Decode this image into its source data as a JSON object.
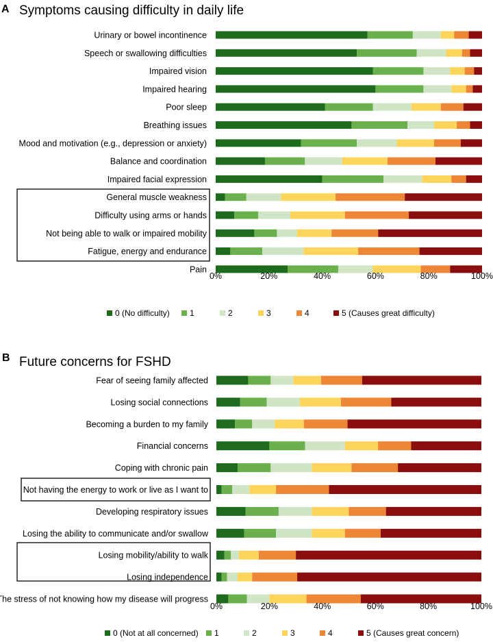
{
  "chart_data": [
    {
      "type": "bar",
      "orientation": "horizontal",
      "stacked": true,
      "panel_letter": "A",
      "title": "Symptoms causing difficulty in daily life",
      "xlim": [
        0,
        100
      ],
      "x_tick_labels": [
        "0%",
        "20%",
        "40%",
        "60%",
        "80%",
        "100%"
      ],
      "legend_position": "bottom",
      "highlighted_categories": [
        9,
        10,
        11,
        12
      ],
      "categories": [
        "Urinary or bowel incontinence",
        "Speech or swallowing difficulties",
        "Impaired vision",
        "Impaired hearing",
        "Poor sleep",
        "Breathing issues",
        "Mood and motivation (e.g., depression or anxiety)",
        "Balance and coordination",
        "Impaired facial expression",
        "General muscle weakness",
        "Difficulty using arms or hands",
        "Not being able to walk or impaired mobility",
        "Fatigue, energy and endurance",
        "Pain"
      ],
      "series": [
        {
          "name": "0 (No difficulty)",
          "color": "#1e6b1e",
          "values": [
            57.0,
            53.0,
            59.0,
            60.0,
            41.0,
            51.0,
            32.0,
            18.5,
            40.0,
            3.5,
            7.0,
            14.5,
            5.5,
            27.0
          ]
        },
        {
          "name": "1",
          "color": "#6ab04c",
          "values": [
            17.0,
            22.5,
            19.0,
            18.0,
            18.0,
            21.0,
            21.0,
            15.0,
            23.0,
            8.0,
            9.0,
            8.5,
            12.0,
            19.0
          ]
        },
        {
          "name": "2",
          "color": "#cfe5c5",
          "values": [
            10.5,
            11.0,
            10.0,
            10.5,
            14.5,
            10.0,
            15.0,
            14.0,
            14.5,
            13.0,
            12.0,
            7.5,
            15.5,
            13.0
          ]
        },
        {
          "name": "3",
          "color": "#fdd55c",
          "values": [
            5.0,
            6.0,
            5.5,
            5.5,
            11.0,
            8.5,
            14.0,
            17.0,
            11.0,
            20.5,
            20.5,
            13.0,
            20.5,
            18.0
          ]
        },
        {
          "name": "4",
          "color": "#ee8637",
          "values": [
            5.5,
            3.0,
            3.5,
            2.5,
            8.5,
            5.0,
            10.0,
            18.0,
            5.5,
            26.0,
            24.0,
            17.5,
            23.0,
            11.0
          ]
        },
        {
          "name": "5 (Causes great difficulty)",
          "color": "#8b0e0e",
          "values": [
            5.0,
            4.5,
            3.0,
            3.5,
            7.0,
            4.5,
            8.0,
            17.5,
            6.0,
            29.0,
            27.5,
            39.0,
            23.5,
            12.0
          ]
        }
      ]
    },
    {
      "type": "bar",
      "orientation": "horizontal",
      "stacked": true,
      "panel_letter": "B",
      "title": "Future concerns for FSHD",
      "xlim": [
        0,
        100
      ],
      "x_tick_labels": [
        "0%",
        "20%",
        "40%",
        "60%",
        "80%",
        "100%"
      ],
      "legend_position": "bottom",
      "highlighted_categories": [
        5,
        8,
        9
      ],
      "categories": [
        "Fear of seeing family affected",
        "Losing social connections",
        "Becoming a burden to my family",
        "Financial concerns",
        "Coping with chronic pain",
        "Not having the energy to work or live as I want to",
        "Developing respiratory issues",
        "Losing the ability to communicate and/or swallow",
        "Losing mobility/ability to walk",
        "Losing independence",
        "The stress of not knowing how my disease will progress"
      ],
      "series": [
        {
          "name": "0 (Not at all concerned)",
          "color": "#1e6b1e",
          "values": [
            12.0,
            9.0,
            7.0,
            20.0,
            8.0,
            2.0,
            11.0,
            10.5,
            3.0,
            2.0,
            4.5
          ]
        },
        {
          "name": "1",
          "color": "#6ab04c",
          "values": [
            8.5,
            10.0,
            6.5,
            13.5,
            12.5,
            4.0,
            12.5,
            12.0,
            2.5,
            2.0,
            7.0
          ]
        },
        {
          "name": "2",
          "color": "#cfe5c5",
          "values": [
            8.5,
            12.5,
            8.5,
            15.0,
            15.5,
            6.5,
            12.5,
            13.5,
            3.0,
            4.0,
            8.5
          ]
        },
        {
          "name": "3",
          "color": "#fdd55c",
          "values": [
            10.5,
            15.5,
            11.0,
            12.5,
            15.0,
            10.0,
            14.0,
            12.5,
            7.5,
            5.5,
            14.0
          ]
        },
        {
          "name": "4",
          "color": "#ee8637",
          "values": [
            15.5,
            19.0,
            16.5,
            12.5,
            17.5,
            20.0,
            14.0,
            13.5,
            14.0,
            17.0,
            20.5
          ]
        },
        {
          "name": "5 (Causes great concern)",
          "color": "#8b0e0e",
          "values": [
            45.0,
            34.0,
            50.5,
            26.5,
            31.5,
            57.5,
            36.0,
            38.0,
            70.0,
            69.5,
            45.5
          ]
        }
      ]
    }
  ]
}
